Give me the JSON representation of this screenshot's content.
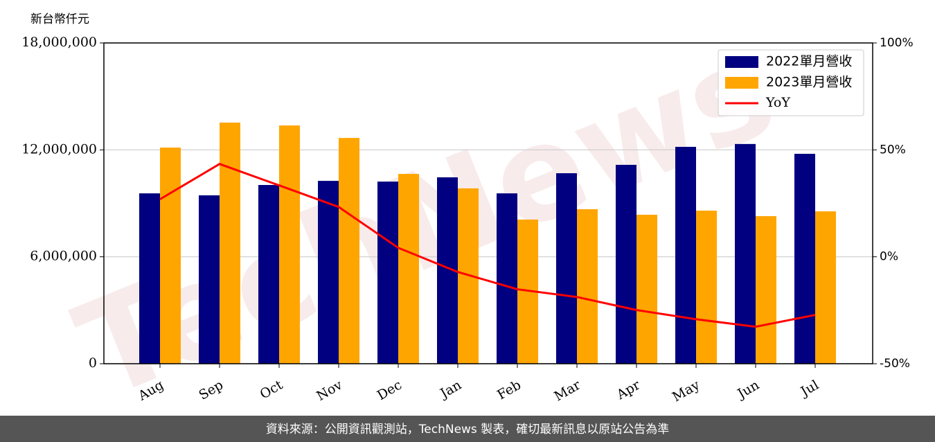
{
  "chart_data": {
    "type": "bar_line",
    "y_label": "新台幣仟元",
    "watermark": "TechNews",
    "source": "資料來源：公開資訊觀測站，TechNews 製表，確切最新訊息以原站公告為準",
    "categories": [
      "Aug",
      "Sep",
      "Oct",
      "Nov",
      "Dec",
      "Jan",
      "Feb",
      "Mar",
      "Apr",
      "May",
      "Jun",
      "Jul"
    ],
    "series": [
      {
        "name": "2022單月營收",
        "color": "#000080",
        "values": [
          9560000,
          9450000,
          10030000,
          10260000,
          10220000,
          10460000,
          9560000,
          10690000,
          11160000,
          12170000,
          12330000,
          11780000
        ]
      },
      {
        "name": "2023單月營收",
        "color": "#ffa500",
        "values": [
          12130000,
          13530000,
          13370000,
          12670000,
          10650000,
          9840000,
          8090000,
          8670000,
          8360000,
          8590000,
          8280000,
          8550000
        ]
      },
      {
        "name": "YoY",
        "color": "#ff0000",
        "axis": "y2",
        "values": [
          26.9,
          43.4,
          33.4,
          23.3,
          4.2,
          -7.1,
          -15.2,
          -18.8,
          -24.9,
          -29.2,
          -32.7,
          -27.2
        ]
      }
    ],
    "ylim": [
      0,
      18000000
    ],
    "yticks": [
      0,
      {
        "value": 6000000,
        "label": "6,000,000"
      },
      {
        "value": 12000000,
        "label": "12,000,000"
      },
      {
        "value": 18000000,
        "label": "18,000,000"
      }
    ],
    "y2lim": [
      -50,
      100
    ],
    "y2ticks": [
      {
        "value": -50,
        "label": "-50%"
      },
      {
        "value": 0,
        "label": "0%"
      },
      {
        "value": 50,
        "label": "50%"
      },
      {
        "value": 100,
        "label": "100%"
      }
    ],
    "grid": true,
    "legend": "upper right"
  }
}
